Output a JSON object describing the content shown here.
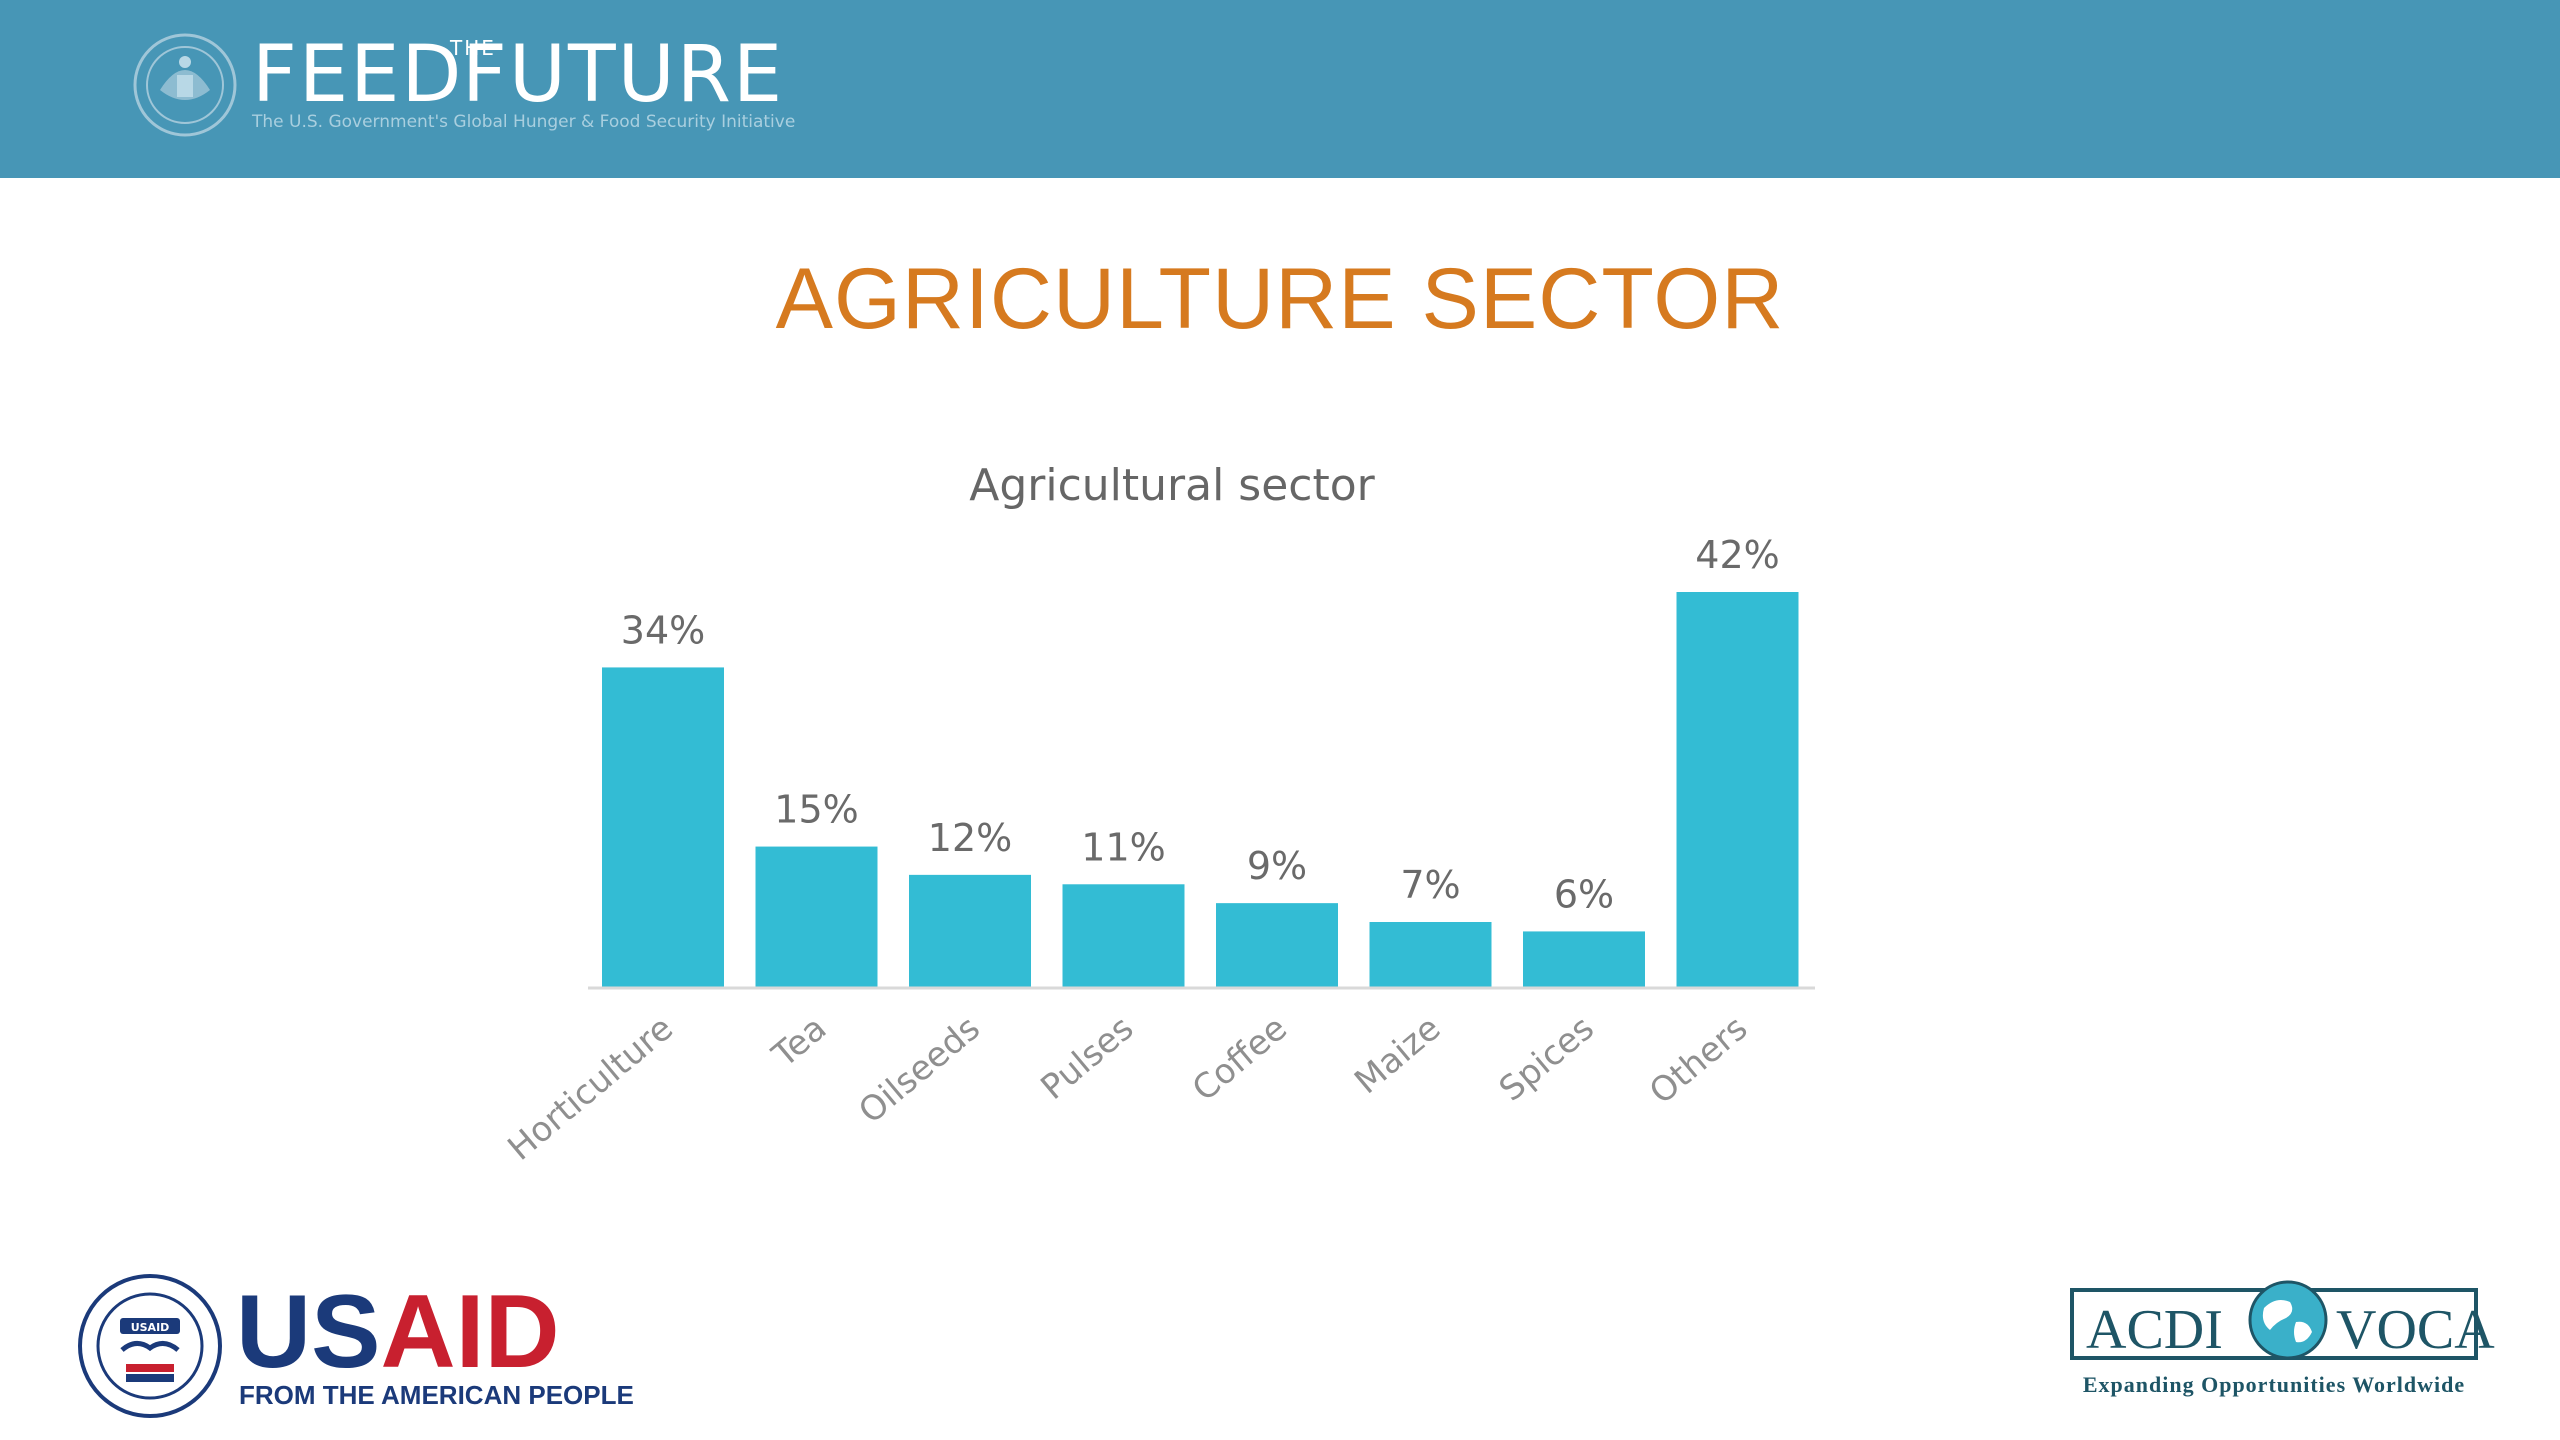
{
  "header": {
    "wordmark_part1": "FEED",
    "wordmark_part2": "THE",
    "wordmark_part3": "FUTURE",
    "tagline": "The U.S. Government's Global Hunger & Food Security Initiative",
    "color": "#4796b6"
  },
  "slide": {
    "title": "AGRICULTURE SECTOR",
    "title_color": "#d67a1f"
  },
  "chart_data": {
    "type": "bar",
    "title": "Agricultural sector",
    "categories": [
      "Horticulture",
      "Tea",
      "Oilseeds",
      "Pulses",
      "Coffee",
      "Maize",
      "Spices",
      "Others"
    ],
    "values": [
      34,
      15,
      12,
      11,
      9,
      7,
      6,
      42
    ],
    "value_labels": [
      "34%",
      "15%",
      "12%",
      "11%",
      "9%",
      "7%",
      "6%",
      "42%"
    ],
    "unit": "%",
    "ylim": [
      0,
      42
    ],
    "grid": false,
    "legend": "none",
    "bar_color": "#33bcd4"
  },
  "footer": {
    "usaid_word_a": "US",
    "usaid_word_b": "AID",
    "usaid_tagline": "FROM THE AMERICAN PEOPLE",
    "usaid_seal_text": "USAID",
    "acdi_word_a": "ACDI",
    "acdi_word_b": "VOCA",
    "acdi_tagline": "Expanding Opportunities Worldwide"
  }
}
